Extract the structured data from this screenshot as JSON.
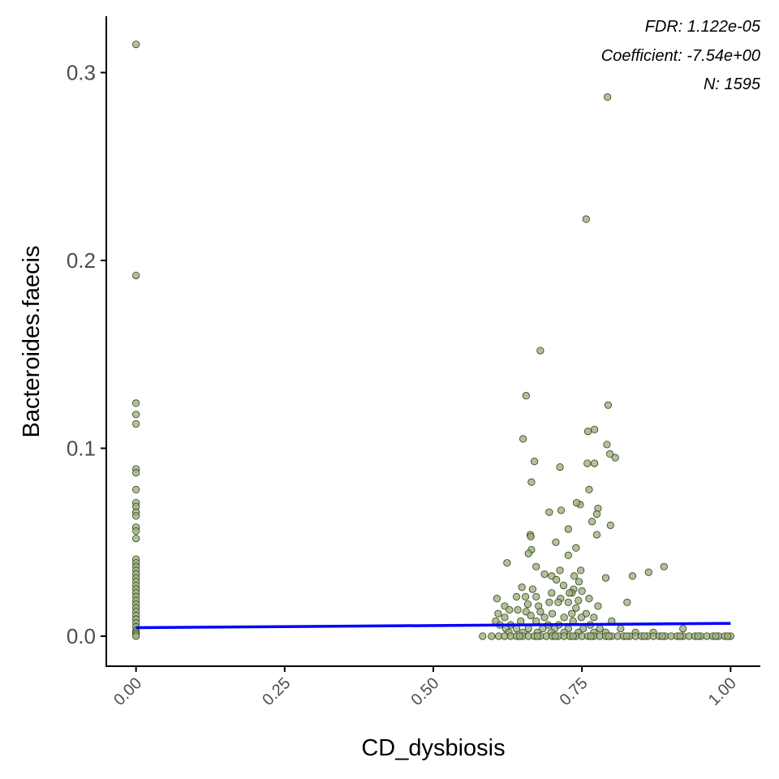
{
  "chart_data": {
    "type": "scatter",
    "xlabel": "CD_dysbiosis",
    "ylabel": "Bacteroides.faecis",
    "xlim": [
      -0.05,
      1.05
    ],
    "ylim": [
      -0.016,
      0.33
    ],
    "x_ticks": [
      0.0,
      0.25,
      0.5,
      0.75,
      1.0
    ],
    "x_tick_labels": [
      "0.00",
      "0.25",
      "0.50",
      "0.75",
      "1.00"
    ],
    "y_ticks": [
      0.0,
      0.1,
      0.2,
      0.3
    ],
    "y_tick_labels": [
      "0.0",
      "0.1",
      "0.2",
      "0.3"
    ],
    "x_tick_rotation_deg": -45,
    "grid": false,
    "legend": "none",
    "annotations": [
      "FDR: 1.122e-05",
      "Coefficient: -7.54e+00",
      "N: 1595"
    ],
    "annotation_placement": "top-right",
    "point_fill": "#9db27f",
    "point_stroke": "#2f3d1c",
    "line_color": "#0000ff",
    "fit_line": {
      "x": [
        0.0,
        1.0
      ],
      "y": [
        0.0045,
        0.0068
      ]
    },
    "points": [
      [
        0.0,
        0.315
      ],
      [
        0.0,
        0.192
      ],
      [
        0.0,
        0.124
      ],
      [
        0.0,
        0.118
      ],
      [
        0.0,
        0.113
      ],
      [
        0.0,
        0.089
      ],
      [
        0.0,
        0.087
      ],
      [
        0.0,
        0.078
      ],
      [
        0.0,
        0.071
      ],
      [
        0.0,
        0.069
      ],
      [
        0.0,
        0.066
      ],
      [
        0.0,
        0.064
      ],
      [
        0.0,
        0.058
      ],
      [
        0.0,
        0.056
      ],
      [
        0.0,
        0.052
      ],
      [
        0.0,
        0.041
      ],
      [
        0.0,
        0.039
      ],
      [
        0.0,
        0.037
      ],
      [
        0.0,
        0.035
      ],
      [
        0.0,
        0.033
      ],
      [
        0.0,
        0.031
      ],
      [
        0.0,
        0.029
      ],
      [
        0.0,
        0.027
      ],
      [
        0.0,
        0.025
      ],
      [
        0.0,
        0.023
      ],
      [
        0.0,
        0.021
      ],
      [
        0.0,
        0.019
      ],
      [
        0.0,
        0.017
      ],
      [
        0.0,
        0.015
      ],
      [
        0.0,
        0.013
      ],
      [
        0.0,
        0.011
      ],
      [
        0.0,
        0.009
      ],
      [
        0.0,
        0.007
      ],
      [
        0.0,
        0.005
      ],
      [
        0.0,
        0.003
      ],
      [
        0.0,
        0.002
      ],
      [
        0.0,
        0.001
      ],
      [
        0.0,
        0.0
      ],
      [
        0.793,
        0.287
      ],
      [
        0.757,
        0.222
      ],
      [
        0.68,
        0.152
      ],
      [
        0.656,
        0.128
      ],
      [
        0.794,
        0.123
      ],
      [
        0.771,
        0.11
      ],
      [
        0.76,
        0.109
      ],
      [
        0.651,
        0.105
      ],
      [
        0.792,
        0.102
      ],
      [
        0.797,
        0.097
      ],
      [
        0.806,
        0.095
      ],
      [
        0.67,
        0.093
      ],
      [
        0.759,
        0.092
      ],
      [
        0.771,
        0.092
      ],
      [
        0.713,
        0.09
      ],
      [
        0.665,
        0.082
      ],
      [
        0.762,
        0.078
      ],
      [
        0.777,
        0.068
      ],
      [
        0.715,
        0.067
      ],
      [
        0.695,
        0.066
      ],
      [
        0.747,
        0.07
      ],
      [
        0.741,
        0.071
      ],
      [
        0.775,
        0.065
      ],
      [
        0.767,
        0.061
      ],
      [
        0.798,
        0.059
      ],
      [
        0.727,
        0.057
      ],
      [
        0.663,
        0.054
      ],
      [
        0.775,
        0.054
      ],
      [
        0.664,
        0.053
      ],
      [
        0.706,
        0.05
      ],
      [
        0.74,
        0.047
      ],
      [
        0.665,
        0.046
      ],
      [
        0.66,
        0.044
      ],
      [
        0.727,
        0.043
      ],
      [
        0.888,
        0.037
      ],
      [
        0.624,
        0.039
      ],
      [
        0.673,
        0.037
      ],
      [
        0.713,
        0.035
      ],
      [
        0.748,
        0.035
      ],
      [
        0.862,
        0.034
      ],
      [
        0.687,
        0.033
      ],
      [
        0.699,
        0.032
      ],
      [
        0.737,
        0.032
      ],
      [
        0.835,
        0.032
      ],
      [
        0.79,
        0.031
      ],
      [
        0.707,
        0.03
      ],
      [
        0.745,
        0.029
      ],
      [
        0.719,
        0.027
      ],
      [
        0.649,
        0.026
      ],
      [
        0.667,
        0.025
      ],
      [
        0.736,
        0.025
      ],
      [
        0.75,
        0.024
      ],
      [
        0.699,
        0.023
      ],
      [
        0.733,
        0.023
      ],
      [
        0.729,
        0.023
      ],
      [
        0.607,
        0.02
      ],
      [
        0.64,
        0.021
      ],
      [
        0.655,
        0.021
      ],
      [
        0.673,
        0.021
      ],
      [
        0.714,
        0.02
      ],
      [
        0.762,
        0.02
      ],
      [
        0.744,
        0.019
      ],
      [
        0.727,
        0.018
      ],
      [
        0.71,
        0.018
      ],
      [
        0.695,
        0.018
      ],
      [
        0.659,
        0.017
      ],
      [
        0.62,
        0.016
      ],
      [
        0.677,
        0.016
      ],
      [
        0.777,
        0.016
      ],
      [
        0.826,
        0.018
      ],
      [
        0.74,
        0.015
      ],
      [
        0.628,
        0.014
      ],
      [
        0.642,
        0.014
      ],
      [
        0.656,
        0.013
      ],
      [
        0.68,
        0.013
      ],
      [
        0.609,
        0.012
      ],
      [
        0.7,
        0.012
      ],
      [
        0.733,
        0.012
      ],
      [
        0.757,
        0.012
      ],
      [
        0.664,
        0.011
      ],
      [
        0.62,
        0.01
      ],
      [
        0.687,
        0.01
      ],
      [
        0.72,
        0.01
      ],
      [
        0.749,
        0.01
      ],
      [
        0.77,
        0.01
      ],
      [
        0.605,
        0.008
      ],
      [
        0.647,
        0.008
      ],
      [
        0.673,
        0.008
      ],
      [
        0.735,
        0.008
      ],
      [
        0.8,
        0.008
      ],
      [
        0.612,
        0.006
      ],
      [
        0.63,
        0.006
      ],
      [
        0.693,
        0.006
      ],
      [
        0.711,
        0.006
      ],
      [
        0.764,
        0.006
      ],
      [
        0.622,
        0.004
      ],
      [
        0.64,
        0.004
      ],
      [
        0.66,
        0.004
      ],
      [
        0.684,
        0.004
      ],
      [
        0.704,
        0.004
      ],
      [
        0.727,
        0.004
      ],
      [
        0.752,
        0.004
      ],
      [
        0.78,
        0.004
      ],
      [
        0.815,
        0.004
      ],
      [
        0.92,
        0.004
      ],
      [
        0.627,
        0.002
      ],
      [
        0.651,
        0.002
      ],
      [
        0.675,
        0.002
      ],
      [
        0.698,
        0.002
      ],
      [
        0.72,
        0.002
      ],
      [
        0.744,
        0.002
      ],
      [
        0.77,
        0.002
      ],
      [
        0.79,
        0.002
      ],
      [
        0.84,
        0.002
      ],
      [
        0.87,
        0.002
      ],
      [
        0.583,
        0.0
      ],
      [
        0.598,
        0.0
      ],
      [
        0.61,
        0.0
      ],
      [
        0.62,
        0.0
      ],
      [
        0.63,
        0.0
      ],
      [
        0.64,
        0.0
      ],
      [
        0.65,
        0.0
      ],
      [
        0.66,
        0.0
      ],
      [
        0.67,
        0.0
      ],
      [
        0.68,
        0.0
      ],
      [
        0.69,
        0.0
      ],
      [
        0.7,
        0.0
      ],
      [
        0.71,
        0.0
      ],
      [
        0.72,
        0.0
      ],
      [
        0.73,
        0.0
      ],
      [
        0.74,
        0.0
      ],
      [
        0.75,
        0.0
      ],
      [
        0.76,
        0.0
      ],
      [
        0.77,
        0.0
      ],
      [
        0.78,
        0.0
      ],
      [
        0.79,
        0.0
      ],
      [
        0.8,
        0.0
      ],
      [
        0.81,
        0.0
      ],
      [
        0.82,
        0.0
      ],
      [
        0.83,
        0.0
      ],
      [
        0.84,
        0.0
      ],
      [
        0.85,
        0.0
      ],
      [
        0.86,
        0.0
      ],
      [
        0.87,
        0.0
      ],
      [
        0.88,
        0.0
      ],
      [
        0.89,
        0.0
      ],
      [
        0.9,
        0.0
      ],
      [
        0.91,
        0.0
      ],
      [
        0.92,
        0.0
      ],
      [
        0.93,
        0.0
      ],
      [
        0.94,
        0.0
      ],
      [
        0.95,
        0.0
      ],
      [
        0.96,
        0.0
      ],
      [
        0.97,
        0.0
      ],
      [
        0.98,
        0.0
      ],
      [
        0.99,
        0.0
      ],
      [
        1.0,
        0.0
      ],
      [
        0.645,
        0.0
      ],
      [
        0.675,
        0.0
      ],
      [
        0.705,
        0.0
      ],
      [
        0.735,
        0.0
      ],
      [
        0.765,
        0.0
      ],
      [
        0.795,
        0.0
      ],
      [
        0.825,
        0.0
      ],
      [
        0.855,
        0.0
      ],
      [
        0.885,
        0.0
      ],
      [
        0.915,
        0.0
      ],
      [
        0.945,
        0.0
      ],
      [
        0.975,
        0.0
      ],
      [
        0.995,
        0.0
      ]
    ]
  }
}
